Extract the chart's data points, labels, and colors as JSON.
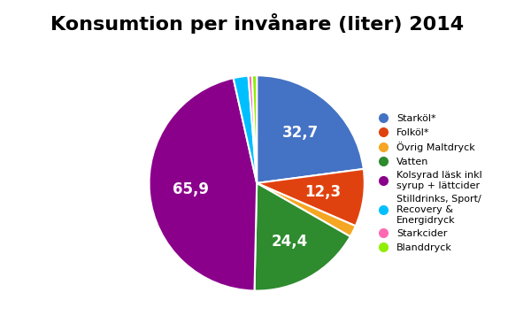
{
  "title": "Konsumtion per invånare (liter) 2014",
  "slices": [
    32.7,
    12.3,
    2.5,
    24.4,
    65.9,
    3.2,
    0.8,
    1.0
  ],
  "labels": [
    "Starköl*",
    "Folköl*",
    "Övrig Maltdryck",
    "Vatten",
    "Kolsyrad läsk inkl\nsyrup + lättcider",
    "Stilldrinks, Sport/\nRecovery &\nEnergidryck",
    "Starkcider",
    "Blanddryck"
  ],
  "display_labels": [
    "32,7",
    "12,3",
    "",
    "24,4",
    "65,9",
    "",
    "",
    ""
  ],
  "colors": [
    "#4472C4",
    "#E0420F",
    "#F5A623",
    "#2E8B2E",
    "#8B008B",
    "#00BFFF",
    "#FF69B4",
    "#90EE00"
  ],
  "startangle": 90,
  "title_fontsize": 16,
  "label_fontsize": 12
}
